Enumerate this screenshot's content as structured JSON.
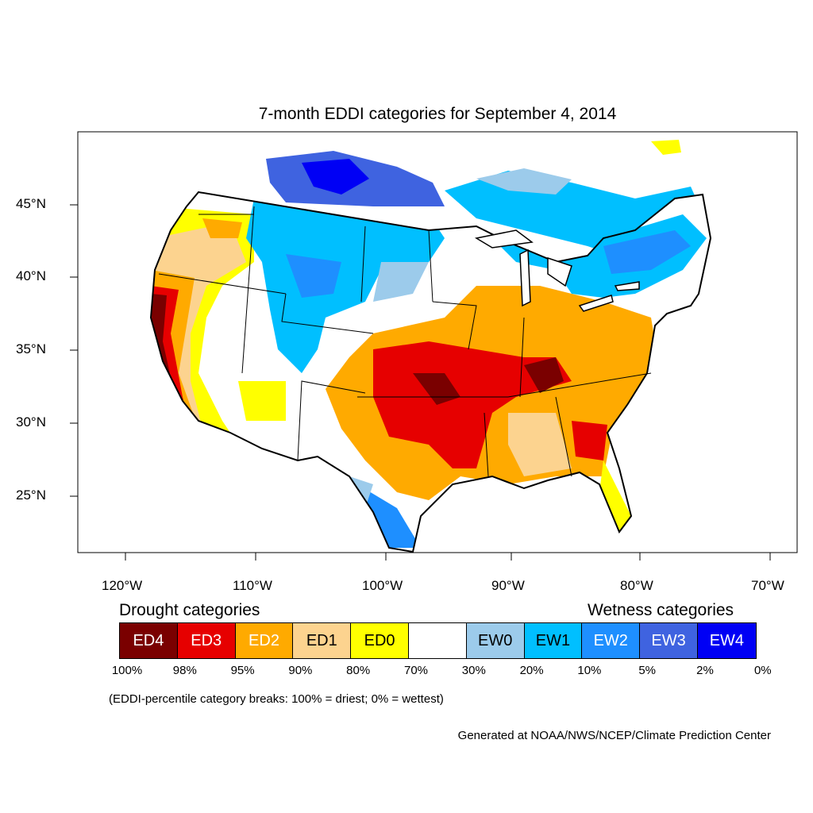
{
  "title": "7-month EDDI categories for September 4, 2014",
  "lat_labels": [
    "45°N",
    "40°N",
    "35°N",
    "30°N",
    "25°N"
  ],
  "lon_labels": [
    "120°W",
    "110°W",
    "100°W",
    "90°W",
    "80°W",
    "70°W"
  ],
  "legend": {
    "drought_heading": "Drought categories",
    "wetness_heading": "Wetness categories",
    "categories": [
      {
        "label": "ED4",
        "color": "#7a0000",
        "text_color": "#ffffff"
      },
      {
        "label": "ED3",
        "color": "#e60000",
        "text_color": "#ffffff"
      },
      {
        "label": "ED2",
        "color": "#ffaa00",
        "text_color": "#ffffff"
      },
      {
        "label": "ED1",
        "color": "#fcd38f",
        "text_color": "#000000"
      },
      {
        "label": "ED0",
        "color": "#ffff00",
        "text_color": "#000000"
      },
      {
        "label": "",
        "color": "#ffffff",
        "text_color": "#000000"
      },
      {
        "label": "EW0",
        "color": "#9ccbeb",
        "text_color": "#000000"
      },
      {
        "label": "EW1",
        "color": "#00bfff",
        "text_color": "#000000"
      },
      {
        "label": "EW2",
        "color": "#1e8fff",
        "text_color": "#ffffff"
      },
      {
        "label": "EW3",
        "color": "#3f63e0",
        "text_color": "#ffffff"
      },
      {
        "label": "EW4",
        "color": "#0000f5",
        "text_color": "#ffffff"
      }
    ],
    "percentiles": [
      "100%",
      "98%",
      "95%",
      "90%",
      "80%",
      "70%",
      "30%",
      "20%",
      "10%",
      "5%",
      "2%",
      "0%"
    ]
  },
  "note": "(EDDI-percentile category breaks: 100% = driest; 0% = wettest)",
  "credit": "Generated at NOAA/NWS/NCEP/Climate Prediction Center"
}
